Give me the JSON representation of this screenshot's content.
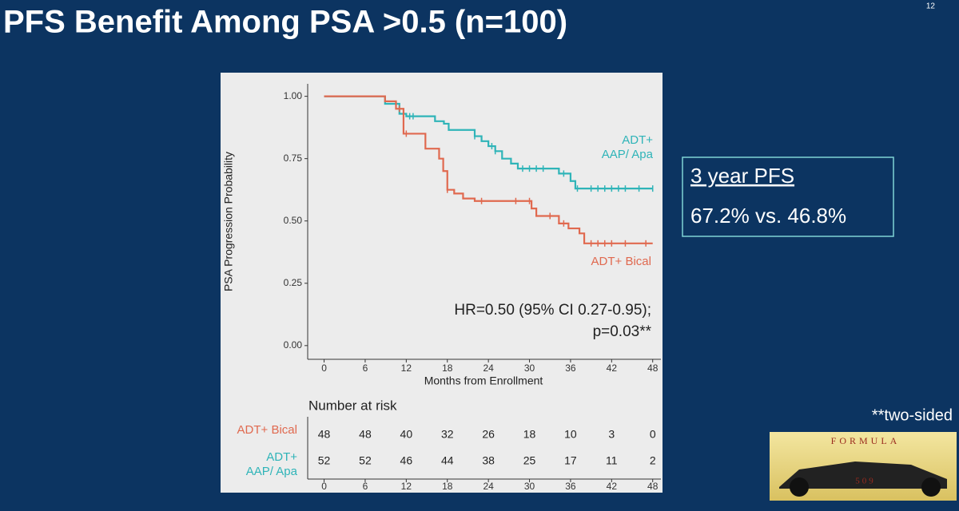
{
  "slide": {
    "title": "PFS Benefit Among PSA >0.5  (n=100)",
    "number": "12",
    "pfs_box": {
      "heading": "3 year PFS",
      "text": "67.2% vs. 46.8%"
    },
    "footnote": "**two-sided",
    "logo": {
      "top": "FORMULA",
      "bottom": "509"
    }
  },
  "chart_data": {
    "type": "step",
    "x_label": "Months from Enrollment",
    "y_label": "PSA Progression Probability",
    "xlim": [
      -2.4,
      49.2
    ],
    "xticks": [
      0,
      6,
      12,
      18,
      24,
      30,
      36,
      42,
      48
    ],
    "ylim": [
      -0.055,
      1.05
    ],
    "yticks": [
      {
        "value": 0,
        "label": "0.00"
      },
      {
        "value": 0.25,
        "label": "0.25"
      },
      {
        "value": 0.5,
        "label": "0.50"
      },
      {
        "value": 0.75,
        "label": "0.75"
      },
      {
        "value": 1,
        "label": "1.00"
      }
    ],
    "annotations": [
      "HR=0.50 (95% CI 0.27-0.95);",
      "p=0.03**"
    ],
    "series": [
      {
        "name": "ADT+\nAAP/ Apa",
        "color": "#2fb4b8",
        "x": [
          0,
          8.9,
          11,
          12,
          16.2,
          17.5,
          18.2,
          22,
          23,
          24,
          25,
          26,
          27.3,
          28.3,
          34.3,
          36,
          36.7,
          48
        ],
        "values": [
          1,
          0.97,
          0.93,
          0.92,
          0.9,
          0.89,
          0.865,
          0.84,
          0.82,
          0.8,
          0.78,
          0.75,
          0.73,
          0.71,
          0.69,
          0.66,
          0.63,
          0.63
        ],
        "censored": [
          12.5,
          13,
          22,
          24.5,
          25,
          29,
          30,
          31,
          32,
          35,
          37,
          39,
          40,
          41,
          42,
          43,
          44,
          46,
          48
        ]
      },
      {
        "name": "ADT+ Bical",
        "color": "#e0694f",
        "x": [
          0,
          8.9,
          10.5,
          11.6,
          14.8,
          16.8,
          17.4,
          18,
          19,
          20.3,
          22,
          30.3,
          31,
          34.3,
          35.7,
          37.3,
          38,
          48
        ],
        "values": [
          1,
          0.98,
          0.95,
          0.85,
          0.79,
          0.75,
          0.7,
          0.625,
          0.61,
          0.59,
          0.58,
          0.55,
          0.52,
          0.49,
          0.47,
          0.45,
          0.41,
          0.41
        ],
        "censored": [
          11,
          12,
          18,
          23,
          28,
          30,
          33,
          35,
          39,
          40,
          41,
          42,
          44,
          47
        ]
      }
    ],
    "risk_table": {
      "title": "Number at risk",
      "rows": [
        {
          "series": 1,
          "values": [
            48,
            48,
            40,
            32,
            26,
            18,
            10,
            3,
            0
          ]
        },
        {
          "series": 0,
          "values": [
            52,
            52,
            46,
            44,
            38,
            25,
            17,
            11,
            2
          ]
        }
      ]
    }
  }
}
